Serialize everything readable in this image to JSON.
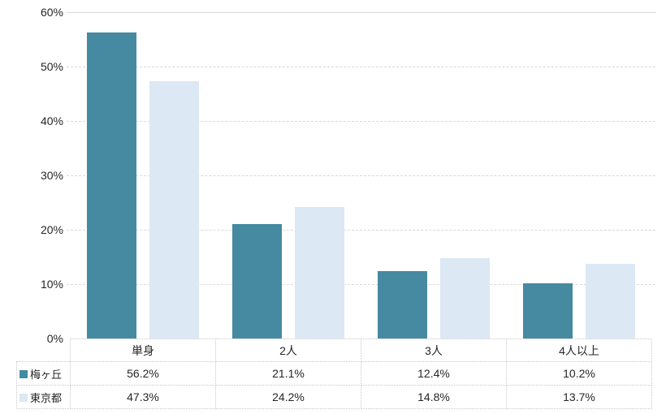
{
  "chart_data": {
    "type": "bar",
    "title": "",
    "xlabel": "",
    "ylabel": "",
    "categories": [
      "単身",
      "2人",
      "3人",
      "4人以上"
    ],
    "series": [
      {
        "name": "梅ヶ丘",
        "color": "#458AA1",
        "values": [
          56.2,
          21.1,
          12.4,
          10.2
        ]
      },
      {
        "name": "東京都",
        "color": "#DCE8F4",
        "values": [
          47.3,
          24.2,
          14.8,
          13.7
        ]
      }
    ],
    "ylim": [
      0,
      60
    ],
    "yticks": [
      "0%",
      "10%",
      "20%",
      "30%",
      "40%",
      "50%",
      "60%"
    ],
    "value_suffix": "%",
    "grid": "horizontal-dashed",
    "legend_position": "data-table-left",
    "colors": {
      "gridline": "#D9D9D9",
      "table_border": "#C9C9C9",
      "text": "#262626",
      "background": "#FFFFFF"
    }
  }
}
